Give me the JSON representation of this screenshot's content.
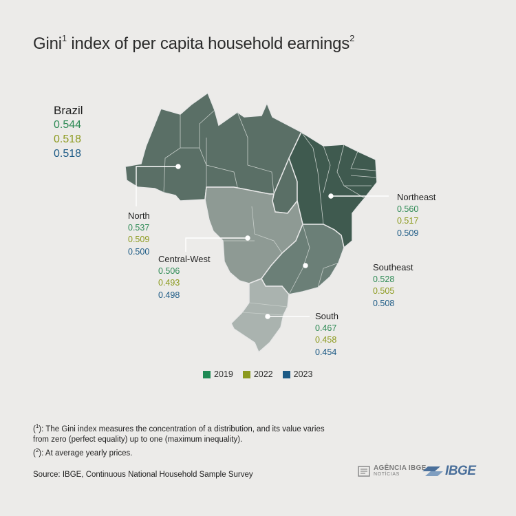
{
  "title": {
    "text": "Gini",
    "sup1": "1",
    "rest": " index of per capita household earnings",
    "sup2": "2"
  },
  "colors": {
    "y2019": "#2e8a55",
    "y2022": "#8c9a1e",
    "y2023": "#1c5a85",
    "north": "#5a6f66",
    "northeast": "#3f5a4f",
    "central_west": "#8e9a94",
    "southeast": "#6b7f77",
    "south": "#aab3af",
    "background": "#ecebe9"
  },
  "brazil": {
    "name": "Brazil",
    "v2019": "0.544",
    "v2022": "0.518",
    "v2023": "0.518"
  },
  "regions": {
    "north": {
      "name": "North",
      "v2019": "0.537",
      "v2022": "0.509",
      "v2023": "0.500"
    },
    "northeast": {
      "name": "Northeast",
      "v2019": "0.560",
      "v2022": "0.517",
      "v2023": "0.509"
    },
    "central_west": {
      "name": "Central-West",
      "v2019": "0.506",
      "v2022": "0.493",
      "v2023": "0.498"
    },
    "southeast": {
      "name": "Southeast",
      "v2019": "0.528",
      "v2022": "0.505",
      "v2023": "0.508"
    },
    "south": {
      "name": "South",
      "v2019": "0.467",
      "v2022": "0.458",
      "v2023": "0.454"
    }
  },
  "legend": [
    "2019",
    "2022",
    "2023"
  ],
  "footnotes": {
    "n1_mark": "1",
    "n1_text": ": The Gini index measures the concentration of a distribution, and its value varies from zero (perfect equality) up to one (maximum inequality).",
    "n2_mark": "2",
    "n2_text": ": At average yearly prices."
  },
  "source": "Source: IBGE, Continuous National Household Sample Survey",
  "logos": {
    "agencia_line1": "AGÊNCIA IBGE",
    "agencia_line2": "NOTÍCIAS",
    "ibge": "IBGE",
    "agencia_icon": "newspaper-icon",
    "ibge_icon": "ibge-arrows-icon"
  }
}
